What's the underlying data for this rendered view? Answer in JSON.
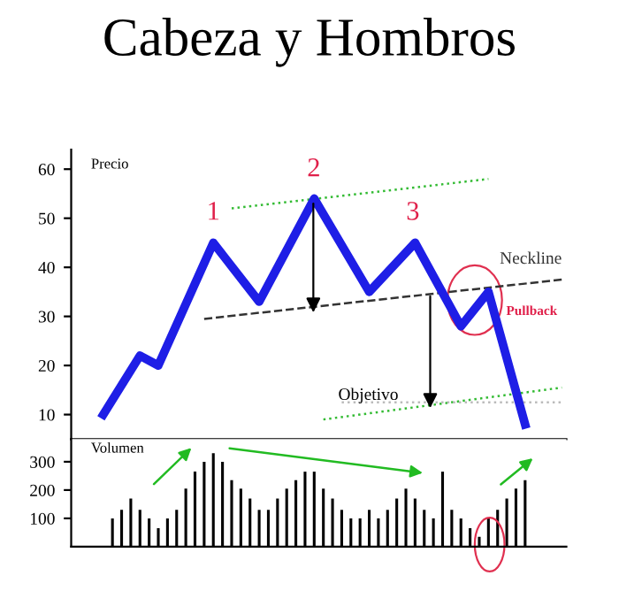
{
  "chart_data": [
    {
      "type": "line",
      "title": "Cabeza y Hombros",
      "ylabel": "Precio",
      "categories": [
        null,
        null,
        null,
        null,
        null,
        null,
        null,
        null,
        null,
        null,
        null,
        null,
        null,
        null,
        null,
        null,
        null,
        null,
        null,
        null,
        null,
        null,
        null,
        null,
        null,
        null,
        null,
        null,
        null,
        null,
        null,
        null,
        null,
        null,
        null,
        null,
        null,
        null,
        null,
        null,
        null,
        null,
        null,
        null,
        null,
        null,
        null,
        null,
        null,
        null,
        null,
        null,
        null,
        null
      ],
      "ylim": [
        5,
        64
      ],
      "yticks": [
        10,
        20,
        30,
        40,
        50,
        60
      ],
      "tick_labels": "y",
      "grid": false,
      "legend": false,
      "annotations": [
        "1",
        "2",
        "3",
        "Pullback",
        "Objetivo"
      ],
      "series": [
        {
          "color": "#1e1ee6",
          "values": [
            null,
            null,
            null,
            10,
            null,
            null,
            null,
            22,
            null,
            20,
            null,
            null,
            null,
            null,
            null,
            45,
            null,
            null,
            null,
            null,
            33,
            null,
            null,
            null,
            null,
            null,
            54,
            null,
            null,
            null,
            null,
            null,
            35,
            null,
            null,
            null,
            null,
            45,
            null,
            null,
            null,
            null,
            28,
            null,
            null,
            35,
            null,
            null,
            null,
            8,
            null,
            null,
            null,
            null
          ]
        },
        {
          "name": "Neckline",
          "color": "#333333",
          "line_style": "dashed",
          "values": [
            null,
            null,
            null,
            null,
            null,
            null,
            null,
            null,
            null,
            null,
            null,
            null,
            null,
            null,
            29.5,
            null,
            null,
            null,
            null,
            null,
            null,
            null,
            null,
            null,
            null,
            null,
            null,
            null,
            null,
            null,
            null,
            null,
            null,
            null,
            null,
            null,
            null,
            null,
            null,
            null,
            null,
            null,
            null,
            null,
            null,
            null,
            null,
            null,
            null,
            null,
            null,
            null,
            null,
            37.5
          ]
        },
        {
          "color": "#33bb33",
          "line_style": "dotted",
          "values": [
            null,
            null,
            null,
            null,
            null,
            null,
            null,
            null,
            null,
            null,
            null,
            null,
            null,
            null,
            null,
            null,
            null,
            52,
            null,
            null,
            null,
            null,
            null,
            null,
            null,
            null,
            null,
            null,
            null,
            null,
            null,
            null,
            null,
            null,
            null,
            null,
            null,
            null,
            null,
            null,
            null,
            null,
            null,
            null,
            null,
            58,
            null,
            null,
            null,
            null,
            null,
            null,
            null,
            null
          ]
        },
        {
          "color": "#33bb33",
          "line_style": "dotted",
          "values": [
            null,
            null,
            null,
            null,
            null,
            null,
            null,
            null,
            null,
            null,
            null,
            null,
            null,
            null,
            null,
            null,
            null,
            null,
            null,
            null,
            null,
            null,
            null,
            null,
            null,
            null,
            null,
            9,
            null,
            null,
            null,
            null,
            null,
            null,
            null,
            null,
            null,
            null,
            null,
            null,
            null,
            null,
            null,
            null,
            null,
            null,
            null,
            null,
            null,
            null,
            null,
            null,
            null,
            15.5
          ]
        },
        {
          "color": "#bbbbbb",
          "line_style": "dotted",
          "values": [
            null,
            null,
            null,
            null,
            null,
            null,
            null,
            null,
            null,
            null,
            null,
            null,
            null,
            null,
            null,
            null,
            null,
            null,
            null,
            null,
            null,
            null,
            null,
            null,
            null,
            null,
            null,
            null,
            null,
            12.5,
            null,
            null,
            null,
            null,
            null,
            null,
            null,
            null,
            null,
            null,
            null,
            null,
            null,
            null,
            null,
            null,
            null,
            null,
            null,
            null,
            null,
            null,
            null,
            12.5
          ]
        }
      ]
    },
    {
      "type": "bar",
      "ylabel": "Volumen",
      "categories": [
        null,
        null,
        null,
        null,
        null,
        null,
        null,
        null,
        null,
        null,
        null,
        null,
        null,
        null,
        null,
        null,
        null,
        null,
        null,
        null,
        null,
        null,
        null,
        null,
        null,
        null,
        null,
        null,
        null,
        null,
        null,
        null,
        null,
        null,
        null,
        null,
        null,
        null,
        null,
        null,
        null,
        null,
        null,
        null,
        null,
        null,
        null,
        null,
        null,
        null,
        null,
        null,
        null,
        null
      ],
      "values": [
        null,
        null,
        null,
        null,
        100,
        130,
        170,
        130,
        100,
        65,
        100,
        130,
        205,
        265,
        300,
        330,
        300,
        235,
        205,
        170,
        130,
        130,
        170,
        205,
        235,
        265,
        265,
        205,
        170,
        130,
        100,
        100,
        130,
        100,
        130,
        170,
        205,
        170,
        130,
        100,
        265,
        130,
        100,
        65,
        35,
        100,
        130,
        170,
        205,
        235,
        null,
        null,
        null,
        null
      ],
      "color": "#000000",
      "ylim": [
        0,
        380
      ],
      "yticks": [
        100,
        200,
        300
      ],
      "tick_labels": "y",
      "grid": false
    }
  ]
}
